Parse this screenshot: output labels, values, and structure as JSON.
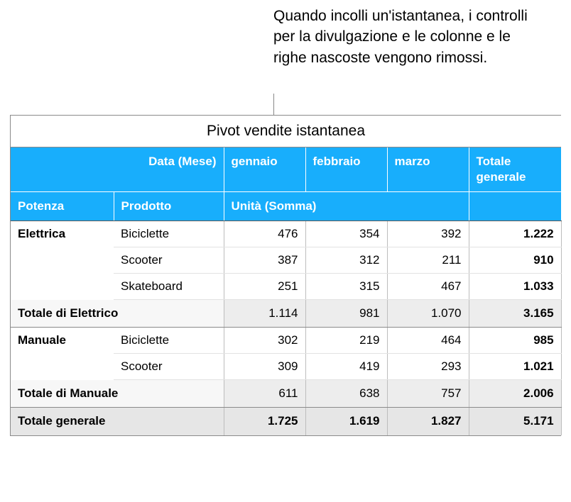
{
  "callout_text": "Quando incolli un'istantanea, i controlli per la divulgazione e le colonne e le righe nascoste vengono rimossi.",
  "table": {
    "title": "Pivot vendite istantanea",
    "header_row1": {
      "data_mese": "Data (Mese)",
      "months": [
        "gennaio",
        "febbraio",
        "marzo"
      ],
      "grand_total": "Totale generale"
    },
    "header_row2": {
      "potenza": "Potenza",
      "prodotto": "Prodotto",
      "unita_somma": "Unità (Somma)"
    },
    "groups": [
      {
        "name": "Elettrica",
        "subtotal_label": "Totale di Elettrico",
        "rows": [
          {
            "product": "Biciclette",
            "vals": [
              "476",
              "354",
              "392"
            ],
            "total": "1.222"
          },
          {
            "product": "Scooter",
            "vals": [
              "387",
              "312",
              "211"
            ],
            "total": "910"
          },
          {
            "product": "Skateboard",
            "vals": [
              "251",
              "315",
              "467"
            ],
            "total": "1.033"
          }
        ],
        "subtotal": {
          "vals": [
            "1.114",
            "981",
            "1.070"
          ],
          "total": "3.165"
        }
      },
      {
        "name": "Manuale",
        "subtotal_label": "Totale di Manuale",
        "rows": [
          {
            "product": "Biciclette",
            "vals": [
              "302",
              "219",
              "464"
            ],
            "total": "985"
          },
          {
            "product": "Scooter",
            "vals": [
              "309",
              "419",
              "293"
            ],
            "total": "1.021"
          }
        ],
        "subtotal": {
          "vals": [
            "611",
            "638",
            "757"
          ],
          "total": "2.006"
        }
      }
    ],
    "grand": {
      "label": "Totale generale",
      "vals": [
        "1.725",
        "1.619",
        "1.827"
      ],
      "total": "5.171"
    },
    "colors": {
      "header_bg": "#18aefc",
      "header_fg": "#ffffff",
      "subtotal_bg": "#ededed",
      "subtotal_lbl_bg": "#f7f7f7",
      "grand_bg": "#e6e6e6",
      "border_strong": "#8a8a8a",
      "border_light": "#e2e2e2",
      "border_mid": "#bdbdbd"
    }
  }
}
